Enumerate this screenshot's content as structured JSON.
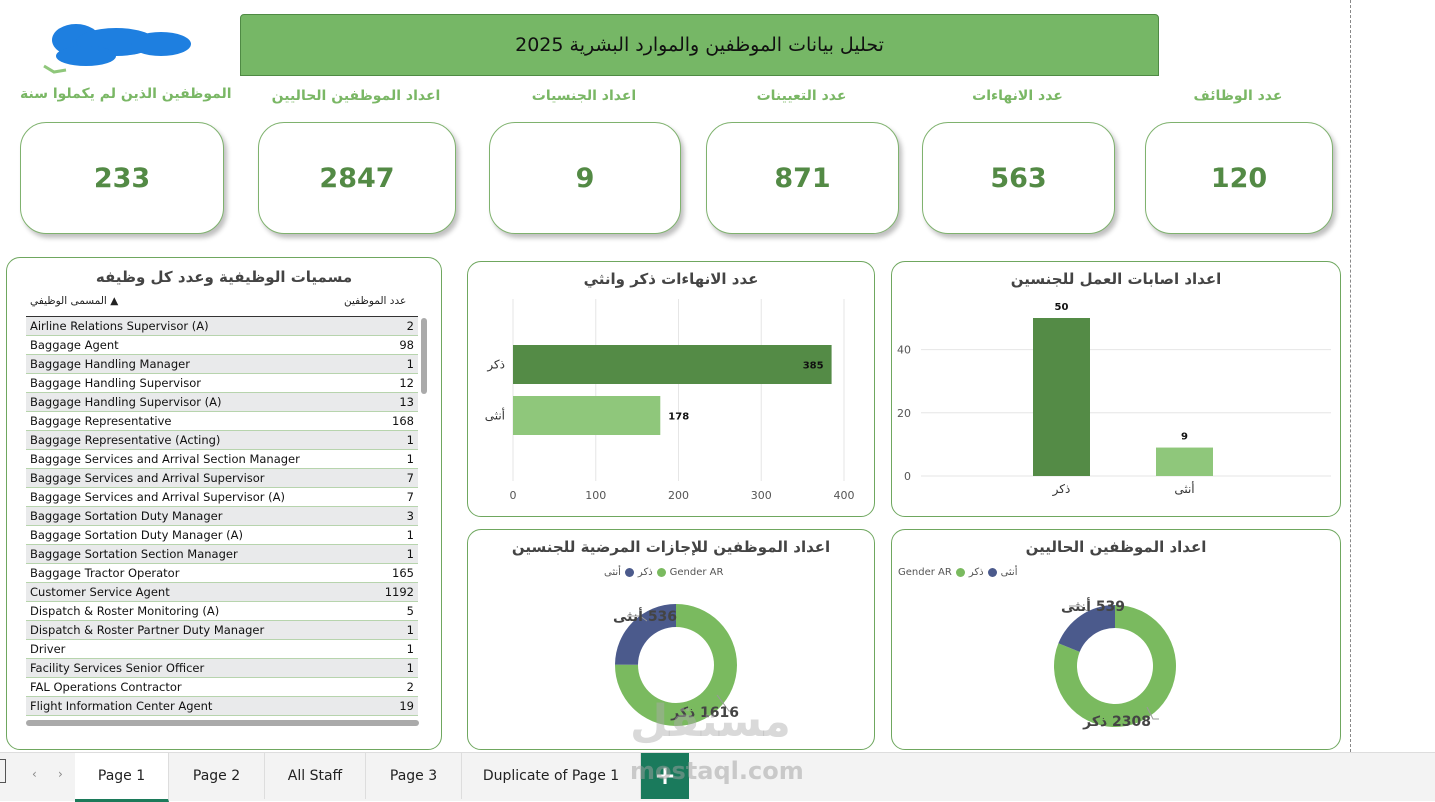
{
  "header": {
    "title": "تحليل بيانات الموظفين والموارد البشرية 2025"
  },
  "kpis": [
    {
      "label": "الموظفين الذين لم يكملوا سنة",
      "value": "233"
    },
    {
      "label": "اعداد الموظفين الحاليين",
      "value": "2847"
    },
    {
      "label": "اعداد الجنسيات",
      "value": "9"
    },
    {
      "label": "عدد التعيينات",
      "value": "871"
    },
    {
      "label": "عدد الانهاءات",
      "value": "563"
    },
    {
      "label": "عدد الوظائف",
      "value": "120"
    }
  ],
  "jobs_table": {
    "title": "مسميات الوظيفية وعدد كل وظيفه",
    "col_title": "المسمى الوظيفي",
    "col_count": "عدد الموظفين",
    "rows": [
      {
        "name": "Airline Relations Supervisor (A)",
        "count": "2"
      },
      {
        "name": "Baggage Agent",
        "count": "98"
      },
      {
        "name": "Baggage Handling Manager",
        "count": "1"
      },
      {
        "name": "Baggage Handling Supervisor",
        "count": "12"
      },
      {
        "name": "Baggage Handling Supervisor (A)",
        "count": "13"
      },
      {
        "name": "Baggage Representative",
        "count": "168"
      },
      {
        "name": "Baggage Representative (Acting)",
        "count": "1"
      },
      {
        "name": "Baggage Services and Arrival Section Manager",
        "count": "1"
      },
      {
        "name": "Baggage Services and Arrival Supervisor",
        "count": "7"
      },
      {
        "name": "Baggage Services and Arrival Supervisor (A)",
        "count": "7"
      },
      {
        "name": "Baggage Sortation Duty Manager",
        "count": "3"
      },
      {
        "name": "Baggage Sortation Duty Manager (A)",
        "count": "1"
      },
      {
        "name": "Baggage Sortation Section Manager",
        "count": "1"
      },
      {
        "name": "Baggage Tractor Operator",
        "count": "165"
      },
      {
        "name": "Customer Service Agent",
        "count": "1192"
      },
      {
        "name": "Dispatch & Roster Monitoring (A)",
        "count": "5"
      },
      {
        "name": "Dispatch & Roster Partner Duty Manager",
        "count": "1"
      },
      {
        "name": "Driver",
        "count": "1"
      },
      {
        "name": "Facility Services Senior Officer",
        "count": "1"
      },
      {
        "name": "FAL Operations Contractor",
        "count": "2"
      },
      {
        "name": "Flight Information Center Agent",
        "count": "19"
      }
    ]
  },
  "colors": {
    "dark_green": "#548b46",
    "light_green": "#8fc77b",
    "navy": "#4b5a8c",
    "donut_green": "#7aba5f"
  },
  "chart_data": [
    {
      "type": "bar",
      "title": "عدد الانهاءات ذكر وانثي",
      "orientation": "horizontal",
      "categories": [
        "ذكر",
        "أنثى"
      ],
      "values": [
        385,
        178
      ],
      "xlim": [
        0,
        400
      ],
      "xticks": [
        "0",
        "100",
        "200",
        "300",
        "400"
      ],
      "data_labels": [
        "385",
        "178"
      ]
    },
    {
      "type": "bar",
      "title": "اعداد اصابات العمل للجنسين",
      "categories": [
        "ذكر",
        "أنثى"
      ],
      "values": [
        50,
        9
      ],
      "ylim": [
        0,
        50
      ],
      "yticks": [
        "0",
        "20",
        "40"
      ],
      "data_labels": [
        "50",
        "9"
      ]
    },
    {
      "type": "pie",
      "title": "اعداد الموظفين للإجازات المرضية للجنسين",
      "legend_title": "Gender AR",
      "legend": [
        "ذكر",
        "أنثى"
      ],
      "slices": [
        {
          "label": "ذكر",
          "value": 1616,
          "text": "1616 ذكر"
        },
        {
          "label": "أنثى",
          "value": 536,
          "text": "536 أنثى"
        }
      ]
    },
    {
      "type": "pie",
      "title": "اعداد الموظفين الحاليين",
      "legend_title": "Gender AR",
      "legend": [
        "ذكر",
        "أنثى"
      ],
      "slices": [
        {
          "label": "ذكر",
          "value": 2308,
          "text": "2308 ذكر"
        },
        {
          "label": "أنثى",
          "value": 539,
          "text": "539 أنثى"
        }
      ]
    }
  ],
  "tabs": [
    "Page 1",
    "Page 2",
    "All Staff",
    "Page 3",
    "Duplicate of Page 1"
  ],
  "add_tab_label": "+",
  "watermark": {
    "arabic": "مستقل",
    "url": "mostaql.com"
  }
}
